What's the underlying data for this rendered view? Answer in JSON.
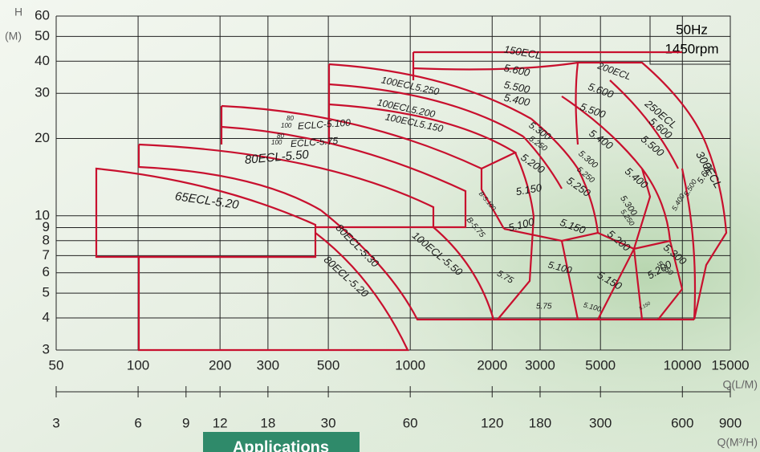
{
  "chart_data": {
    "type": "region-map",
    "x_scale": "log",
    "y_scale": "log",
    "grid": true,
    "xlim": [
      50,
      15000
    ],
    "xticks": [
      50,
      100,
      200,
      300,
      500,
      1000,
      2000,
      3000,
      5000,
      10000,
      15000
    ],
    "ylim": [
      3,
      60
    ],
    "yticks": [
      3,
      4,
      5,
      6,
      7,
      8,
      9,
      10,
      20,
      30,
      40,
      50,
      60
    ],
    "x2lim": [
      3,
      900
    ],
    "x2ticks": [
      3,
      6,
      9,
      12,
      18,
      30,
      60,
      120,
      180,
      300,
      600,
      900
    ],
    "x_label": "Q(L/M)",
    "x2_label": "Q(M³/H)",
    "y_label": "H",
    "y_unit": "(M)",
    "annotations": [
      "50Hz",
      "1450rpm"
    ],
    "region_labels": [
      "150ECL",
      "5.600",
      "5.500",
      "5.400",
      "200ECL",
      "5.600",
      "5.500",
      "250ECL",
      "5.600",
      "5.500",
      "300ECL",
      "5.600",
      "100ECL5.250",
      "100ECL5.200",
      "100ECL5.150",
      "5.300",
      "5.250",
      "5.400",
      "5.200",
      "5.300",
      "5.250",
      "5.400",
      "5.150",
      "5.250",
      "B-5.100",
      "B-5.75",
      "5.100",
      "5.150",
      "5.300",
      "5.250",
      "5.200",
      "5.400",
      "5.500",
      "80",
      "100",
      "ECLC-5.100",
      "80",
      "100",
      "ECLC-5.75",
      "80ECL-5.50",
      "65ECL-5.20",
      "80ECL-5.30",
      "80ECL-5.20",
      "100ECL-5.50",
      "5.75",
      "5.100",
      "5.150",
      "5.200",
      "5.300",
      "5.250",
      "5.75",
      "5.100",
      "5.150"
    ]
  },
  "footer": {
    "button": "Applications"
  }
}
